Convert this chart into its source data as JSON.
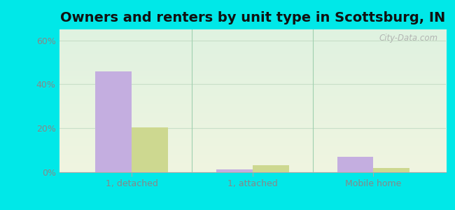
{
  "title": "Owners and renters by unit type in Scottsburg, IN",
  "categories": [
    "1, detached",
    "1, attached",
    "Mobile home"
  ],
  "owner_values": [
    46.0,
    1.2,
    7.0
  ],
  "renter_values": [
    20.5,
    3.2,
    2.0
  ],
  "owner_color": "#c4aee0",
  "renter_color": "#cdd eighteen",
  "renter_color_fixed": "#cdd890",
  "ylim": [
    0,
    65
  ],
  "yticks": [
    0,
    20,
    40,
    60
  ],
  "ytick_labels": [
    "0%",
    "20%",
    "40%",
    "60%"
  ],
  "background_outer": "#00e8e8",
  "background_inner_top": "#dff2e0",
  "background_inner_bottom": "#f0f5e0",
  "bar_width": 0.3,
  "watermark": "City-Data.com",
  "title_fontsize": 14,
  "tick_fontsize": 9,
  "legend_fontsize": 9,
  "grid_color": "#c8dfc8",
  "separator_color": "#a0d0b0"
}
